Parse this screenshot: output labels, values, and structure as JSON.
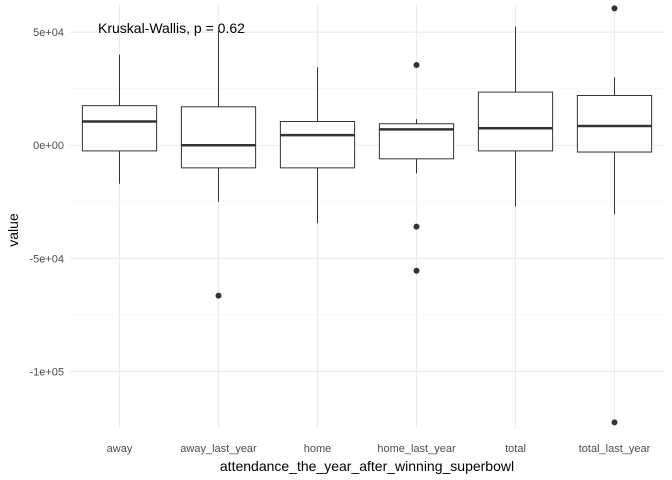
{
  "chart_data": {
    "type": "boxplot",
    "annotation": "Kruskal-Wallis, p = 0.62",
    "xlabel": "attendance_the_year_after_winning_superbowl",
    "ylabel": "value",
    "ylim": [
      -125000,
      62000
    ],
    "yticks": [
      {
        "value": 50000,
        "label": "5e+04"
      },
      {
        "value": 0,
        "label": "0e+00"
      },
      {
        "value": -50000,
        "label": "-5e+04"
      },
      {
        "value": -100000,
        "label": "-1e+05"
      }
    ],
    "categories": [
      "away",
      "away_last_year",
      "home",
      "home_last_year",
      "total",
      "total_last_year"
    ],
    "boxes": [
      {
        "name": "away",
        "whisker_low": -17000,
        "q1": -2500,
        "median": 10500,
        "q3": 17500,
        "whisker_high": 40000,
        "outliers": []
      },
      {
        "name": "away_last_year",
        "whisker_low": -25000,
        "q1": -10000,
        "median": 0,
        "q3": 17000,
        "whisker_high": 50500,
        "outliers": [
          -66500
        ]
      },
      {
        "name": "home",
        "whisker_low": -34500,
        "q1": -10000,
        "median": 4500,
        "q3": 10500,
        "whisker_high": 34500,
        "outliers": []
      },
      {
        "name": "home_last_year",
        "whisker_low": -12500,
        "q1": -6000,
        "median": 7000,
        "q3": 9500,
        "whisker_high": 11500,
        "outliers": [
          35500,
          -36000,
          -55500
        ]
      },
      {
        "name": "total",
        "whisker_low": -27000,
        "q1": -2500,
        "median": 7500,
        "q3": 23500,
        "whisker_high": 52500,
        "outliers": []
      },
      {
        "name": "total_last_year",
        "whisker_low": -30500,
        "q1": -3000,
        "median": 8500,
        "q3": 22000,
        "whisker_high": 30000,
        "outliers": [
          60500,
          -122500
        ]
      }
    ],
    "grid": true,
    "colors": {
      "box_stroke": "#333333",
      "grid_major": "#ebebeb",
      "grid_minor": "#f5f5f5",
      "outlier": "#333333"
    }
  }
}
